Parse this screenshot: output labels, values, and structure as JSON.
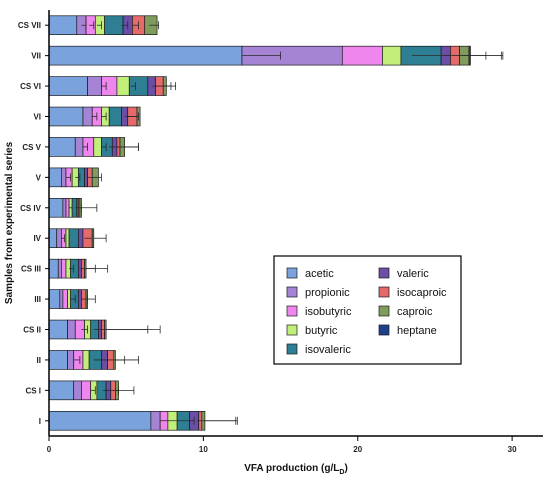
{
  "chart_data": {
    "type": "bar",
    "orientation": "horizontal",
    "stacked": true,
    "xlabel": "VFA production (g/L",
    "xlabel_sub": "D",
    "xlabel_close": ")",
    "ylabel": "Samples from experimental series",
    "xlim": [
      0,
      32
    ],
    "x_ticks": [
      0,
      10,
      20,
      30
    ],
    "grid": false,
    "legend_position": "center-right",
    "categories": [
      "CS VII",
      "VII",
      "CS VI",
      "VI",
      "CS V",
      "V",
      "CS IV",
      "IV",
      "CS III",
      "III",
      "CS II",
      "II",
      "CS I",
      "I"
    ],
    "series": [
      {
        "name": "acetic",
        "color": "#7aa2dd",
        "values": [
          1.8,
          12.5,
          2.5,
          2.2,
          1.7,
          0.8,
          0.9,
          0.5,
          0.6,
          0.7,
          1.2,
          1.2,
          1.6,
          6.6
        ]
      },
      {
        "name": "propionic",
        "color": "#a584d6",
        "values": [
          0.6,
          6.5,
          0.9,
          0.6,
          0.5,
          0.3,
          0.2,
          0.3,
          0.2,
          0.2,
          0.5,
          0.4,
          0.5,
          0.6
        ]
      },
      {
        "name": "isobutyric",
        "color": "#ee86ee",
        "values": [
          0.6,
          2.6,
          1.0,
          0.6,
          0.7,
          0.4,
          0.2,
          0.3,
          0.3,
          0.3,
          0.6,
          0.6,
          0.6,
          0.5
        ]
      },
      {
        "name": "butyric",
        "color": "#c2ef7a",
        "values": [
          0.6,
          1.2,
          0.8,
          0.5,
          0.5,
          0.4,
          0.2,
          0.2,
          0.3,
          0.2,
          0.4,
          0.4,
          0.4,
          0.6
        ]
      },
      {
        "name": "isovaleric",
        "color": "#2e7f93",
        "values": [
          1.2,
          2.6,
          1.2,
          0.8,
          0.7,
          0.4,
          0.3,
          0.6,
          0.5,
          0.5,
          0.5,
          0.8,
          0.6,
          0.8
        ]
      },
      {
        "name": "valeric",
        "color": "#6b4ea6",
        "values": [
          0.6,
          0.6,
          0.5,
          0.4,
          0.3,
          0.2,
          0.1,
          0.3,
          0.2,
          0.2,
          0.2,
          0.4,
          0.3,
          0.6
        ]
      },
      {
        "name": "isocaproic",
        "color": "#e56b6b",
        "values": [
          0.8,
          0.6,
          0.5,
          0.6,
          0.2,
          0.3,
          0.1,
          0.6,
          0.2,
          0.3,
          0.2,
          0.4,
          0.3,
          0.2
        ]
      },
      {
        "name": "caproic",
        "color": "#7f9c5c",
        "values": [
          0.8,
          0.6,
          0.2,
          0.2,
          0.3,
          0.4,
          0.1,
          0.1,
          0.1,
          0.1,
          0.1,
          0.1,
          0.2,
          0.2
        ]
      },
      {
        "name": "heptane",
        "color": "#1e3f8a",
        "values": [
          0.0,
          0.1,
          0.0,
          0.0,
          0.0,
          0.0,
          0.0,
          0.0,
          0.0,
          0.0,
          0.0,
          0.0,
          0.0,
          0.0
        ]
      }
    ],
    "error_bars": [
      [
        {
          "at": 2.1,
          "err": 0.3
        },
        {
          "at": 2.6,
          "err": 0.3
        },
        {
          "at": 3.1,
          "err": 0.3
        },
        {
          "at": 4.7,
          "err": 0.4
        },
        {
          "at": 5.4,
          "err": 0.4
        },
        {
          "at": 6.5,
          "err": 0.6
        }
      ],
      [
        {
          "at": 12.5,
          "err": 2.5
        },
        {
          "at": 23.5,
          "err": 2.5
        },
        {
          "at": 25.5,
          "err": 2.8
        },
        {
          "at": 26.2,
          "err": 3.2
        },
        {
          "at": 26.8,
          "err": 2.5
        }
      ],
      [
        {
          "at": 3.4,
          "err": 0.3
        },
        {
          "at": 5.3,
          "err": 0.3
        },
        {
          "at": 6.7,
          "err": 1.2
        },
        {
          "at": 7.4,
          "err": 0.8
        }
      ],
      [
        {
          "at": 2.8,
          "err": 0.3
        },
        {
          "at": 3.4,
          "err": 0.3
        },
        {
          "at": 4.9,
          "err": 0.8
        },
        {
          "at": 5.1,
          "err": 0.7
        }
      ],
      [
        {
          "at": 2.2,
          "err": 0.3
        },
        {
          "at": 3.4,
          "err": 0.3
        },
        {
          "at": 3.9,
          "err": 1.9
        },
        {
          "at": 4.4,
          "err": 1.4
        }
      ],
      [
        {
          "at": 1.1,
          "err": 0.3
        },
        {
          "at": 1.7,
          "err": 0.3
        },
        {
          "at": 2.5,
          "err": 0.9
        }
      ],
      [
        {
          "at": 1.3,
          "err": 0.2
        },
        {
          "at": 1.7,
          "err": 0.4
        },
        {
          "at": 2.0,
          "err": 1.1
        }
      ],
      [
        {
          "at": 0.8,
          "err": 0.2
        },
        {
          "at": 2.3,
          "err": 0.5
        },
        {
          "at": 2.9,
          "err": 0.8
        }
      ],
      [
        {
          "at": 1.3,
          "err": 0.3
        },
        {
          "at": 2.0,
          "err": 1.0
        },
        {
          "at": 2.4,
          "err": 1.4
        }
      ],
      [
        {
          "at": 1.4,
          "err": 0.3
        },
        {
          "at": 2.1,
          "err": 0.4
        },
        {
          "at": 2.5,
          "err": 0.5
        }
      ],
      [
        {
          "at": 2.1,
          "err": 0.4
        },
        {
          "at": 2.9,
          "err": 3.5
        },
        {
          "at": 3.7,
          "err": 3.5
        }
      ],
      [
        {
          "at": 1.6,
          "err": 0.4
        },
        {
          "at": 2.9,
          "err": 2.0
        },
        {
          "at": 4.3,
          "err": 1.5
        }
      ],
      [
        {
          "at": 2.7,
          "err": 0.3
        },
        {
          "at": 3.5,
          "err": 1.0
        },
        {
          "at": 4.2,
          "err": 1.3
        }
      ],
      [
        {
          "at": 7.2,
          "err": 2.2
        },
        {
          "at": 9.6,
          "err": 2.5
        },
        {
          "at": 10.0,
          "err": 2.2
        }
      ]
    ]
  }
}
